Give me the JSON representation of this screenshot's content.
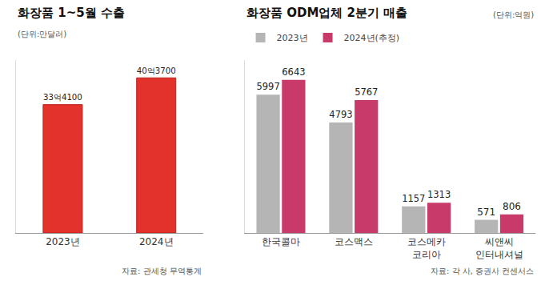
{
  "chart_data": [
    {
      "type": "bar",
      "title": "화장품 1~5월 수출",
      "subtitle": "(단위:만달러)",
      "annotations": [
        "자료: 관세청 무역통계"
      ],
      "categories": [
        "2023년",
        "2024년"
      ],
      "values": [
        334100,
        403700
      ],
      "value_labels": [
        "33억4100",
        "40억3700"
      ],
      "color": "#e2322b",
      "ylim": [
        0,
        450000
      ],
      "data_labels": true,
      "tick_labels": "x",
      "grid": false
    },
    {
      "type": "bar",
      "title": "화장품 ODM업체 2분기 매출",
      "subtitle": "(단위:억원)",
      "annotations": [
        "자료: 각 사, 증권사 컨센서스"
      ],
      "categories": [
        "한국콜마",
        "코스맥스",
        "코스메카\n코리아",
        "씨앤씨\n인터내셔널"
      ],
      "series": [
        {
          "name": "2023년",
          "color": "#b5b5b5",
          "values": [
            5997,
            4793,
            1157,
            571
          ]
        },
        {
          "name": "2024년(추정)",
          "color": "#c83a6a",
          "values": [
            6643,
            5767,
            1313,
            806
          ]
        }
      ],
      "ylim": [
        0,
        7500
      ],
      "data_labels": true,
      "tick_labels": "x",
      "legend": "top-left",
      "grid": false
    }
  ]
}
